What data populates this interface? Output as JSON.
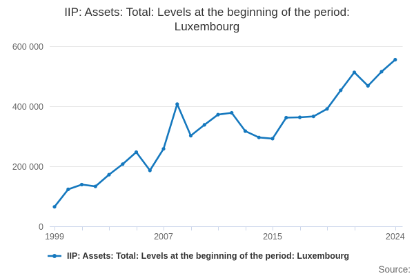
{
  "header": {
    "title_line1": "IIP: Assets: Total: Levels at the beginning of the period:",
    "title_line2": "Luxembourg"
  },
  "legend": {
    "label": "IIP: Assets: Total: Levels at the beginning of the period: Luxembourg",
    "marker_color": "#1578be"
  },
  "footer": {
    "source_label": "Source:"
  },
  "chart_data": {
    "type": "line",
    "title": "IIP: Assets: Total: Levels at the beginning of the period: Luxembourg",
    "series_name": "IIP: Assets: Total: Levels at the beginning of the period: Luxembourg",
    "x": [
      1999,
      2000,
      2001,
      2002,
      2003,
      2004,
      2005,
      2006,
      2007,
      2008,
      2009,
      2010,
      2011,
      2012,
      2013,
      2014,
      2015,
      2016,
      2017,
      2018,
      2019,
      2020,
      2021,
      2022,
      2023,
      2024
    ],
    "values": [
      64000,
      122000,
      138000,
      132000,
      171000,
      206000,
      246000,
      185000,
      257000,
      406000,
      301000,
      337000,
      371000,
      377000,
      316000,
      295000,
      291000,
      361000,
      362000,
      365000,
      390000,
      452000,
      512000,
      467000,
      514000,
      554000
    ],
    "xlabel": "",
    "ylabel": "",
    "ylim": [
      0,
      600000
    ],
    "yticks": [
      0,
      200000,
      400000,
      600000
    ],
    "ytick_labels": [
      "0",
      "200 000",
      "400 000",
      "600 000"
    ],
    "xtick_mark_years": [
      1999,
      2001,
      2003,
      2005,
      2007,
      2009,
      2011,
      2013,
      2015,
      2017,
      2019,
      2021,
      2024
    ],
    "xtick_labels": [
      {
        "year": 1999,
        "label": "1999"
      },
      {
        "year": 2007,
        "label": "2007"
      },
      {
        "year": 2015,
        "label": "2015"
      },
      {
        "year": 2024,
        "label": "2024"
      }
    ],
    "grid": "horizontal",
    "legend_position": "bottom",
    "line_color": "#1578be",
    "marker_shape": "circle",
    "grid_color": "#e6e6e6",
    "axis_color": "#ccd6eb",
    "label_color": "#666666",
    "title_color": "#333333"
  }
}
